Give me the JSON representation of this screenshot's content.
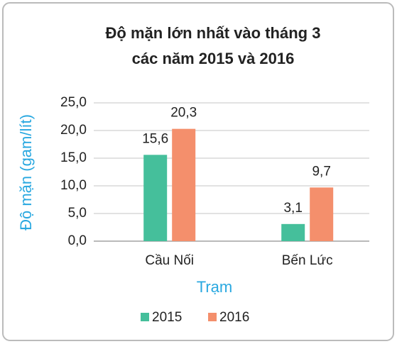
{
  "chart_data": {
    "type": "bar",
    "title": [
      "Độ mặn lớn nhất vào tháng 3",
      "các năm 2015 và 2016"
    ],
    "y_label": "Độ mặn (gam/lít)",
    "x_label": "Trạm",
    "categories": [
      "Cầu Nối",
      "Bến Lức"
    ],
    "series": [
      {
        "name": "2015",
        "color": "#45bf9b",
        "values": [
          15.6,
          3.1
        ],
        "value_labels": [
          "15,6",
          "3,1"
        ]
      },
      {
        "name": "2016",
        "color": "#f48f6c",
        "values": [
          20.3,
          9.7
        ],
        "value_labels": [
          "20,3",
          "9,7"
        ]
      }
    ],
    "ylim": [
      0,
      25
    ],
    "yticks": [
      {
        "value": 0,
        "label": "0,0"
      },
      {
        "value": 5,
        "label": "5,0"
      },
      {
        "value": 10,
        "label": "10,0"
      },
      {
        "value": 15,
        "label": "15,0"
      },
      {
        "value": 20,
        "label": "20,0"
      },
      {
        "value": 25,
        "label": "25,0"
      }
    ],
    "grid": true,
    "legend": "bottom"
  }
}
